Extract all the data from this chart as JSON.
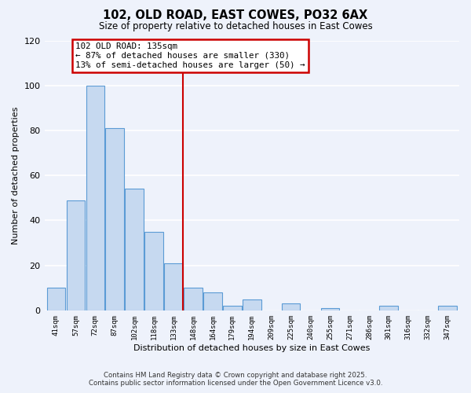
{
  "title": "102, OLD ROAD, EAST COWES, PO32 6AX",
  "subtitle": "Size of property relative to detached houses in East Cowes",
  "xlabel": "Distribution of detached houses by size in East Cowes",
  "ylabel": "Number of detached properties",
  "categories": [
    "41sqm",
    "57sqm",
    "72sqm",
    "87sqm",
    "102sqm",
    "118sqm",
    "133sqm",
    "148sqm",
    "164sqm",
    "179sqm",
    "194sqm",
    "209sqm",
    "225sqm",
    "240sqm",
    "255sqm",
    "271sqm",
    "286sqm",
    "301sqm",
    "316sqm",
    "332sqm",
    "347sqm"
  ],
  "bar_values": [
    10,
    49,
    100,
    81,
    54,
    35,
    21,
    10,
    8,
    2,
    5,
    0,
    3,
    0,
    1,
    0,
    0,
    2,
    0,
    0,
    2
  ],
  "bar_color": "#c6d9f0",
  "bar_edge_color": "#5b9bd5",
  "vline_x_index": 6,
  "vline_color": "#cc0000",
  "annotation_title": "102 OLD ROAD: 135sqm",
  "annotation_line1": "← 87% of detached houses are smaller (330)",
  "annotation_line2": "13% of semi-detached houses are larger (50) →",
  "annotation_box_edge": "#cc0000",
  "ylim": [
    0,
    120
  ],
  "yticks": [
    0,
    20,
    40,
    60,
    80,
    100,
    120
  ],
  "background_color": "#eef2fb",
  "grid_color": "#ffffff",
  "footnote1": "Contains HM Land Registry data © Crown copyright and database right 2025.",
  "footnote2": "Contains public sector information licensed under the Open Government Licence v3.0."
}
